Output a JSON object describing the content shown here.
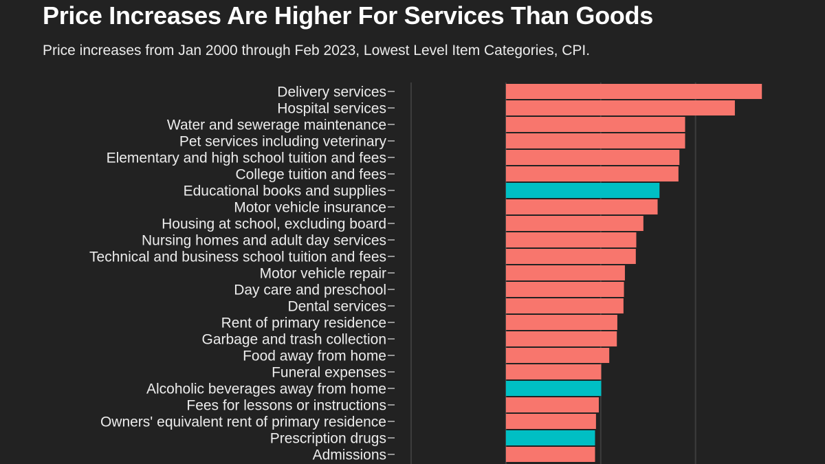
{
  "chart_data": {
    "type": "bar",
    "orientation": "horizontal",
    "title": "Price Increases Are Higher For Services Than Goods",
    "subtitle": "Price increases from Jan 2000 through Feb 2023, Lowest Level Item Categories, CPI.",
    "xlabel": "",
    "ylabel": "",
    "xlim": [
      -2.0,
      5.6
    ],
    "categories": [
      "Delivery services",
      "Hospital services",
      "Water and sewerage maintenance",
      "Pet services including veterinary",
      "Elementary and high school tuition and fees",
      "College tuition and fees",
      "Educational books and supplies",
      "Motor vehicle insurance",
      "Housing at school, excluding board",
      "Nursing homes and adult day services",
      "Technical and business school tuition and fees",
      "Motor vehicle repair",
      "Day care and preschool",
      "Dental services",
      "Rent of primary residence",
      "Garbage and trash collection",
      "Food away from home",
      "Funeral expenses",
      "Alcoholic beverages away from home",
      "Fees for lessons or instructions",
      "Owners' equivalent rent of primary residence",
      "Prescription drugs",
      "Admissions"
    ],
    "values": [
      5.4,
      4.83,
      3.78,
      3.78,
      3.66,
      3.64,
      3.24,
      3.2,
      2.9,
      2.75,
      2.74,
      2.51,
      2.49,
      2.48,
      2.35,
      2.34,
      2.18,
      2.01,
      2.01,
      1.96,
      1.9,
      1.88,
      1.88
    ],
    "groups": [
      "services",
      "services",
      "services",
      "services",
      "services",
      "services",
      "goods",
      "services",
      "services",
      "services",
      "services",
      "services",
      "services",
      "services",
      "services",
      "services",
      "services",
      "services",
      "goods",
      "services",
      "services",
      "goods",
      "services"
    ],
    "colors": {
      "services": "#F8766D",
      "goods": "#00BFC4"
    },
    "gridlines": [
      0,
      2,
      4
    ],
    "grid": true,
    "legend": "none"
  }
}
